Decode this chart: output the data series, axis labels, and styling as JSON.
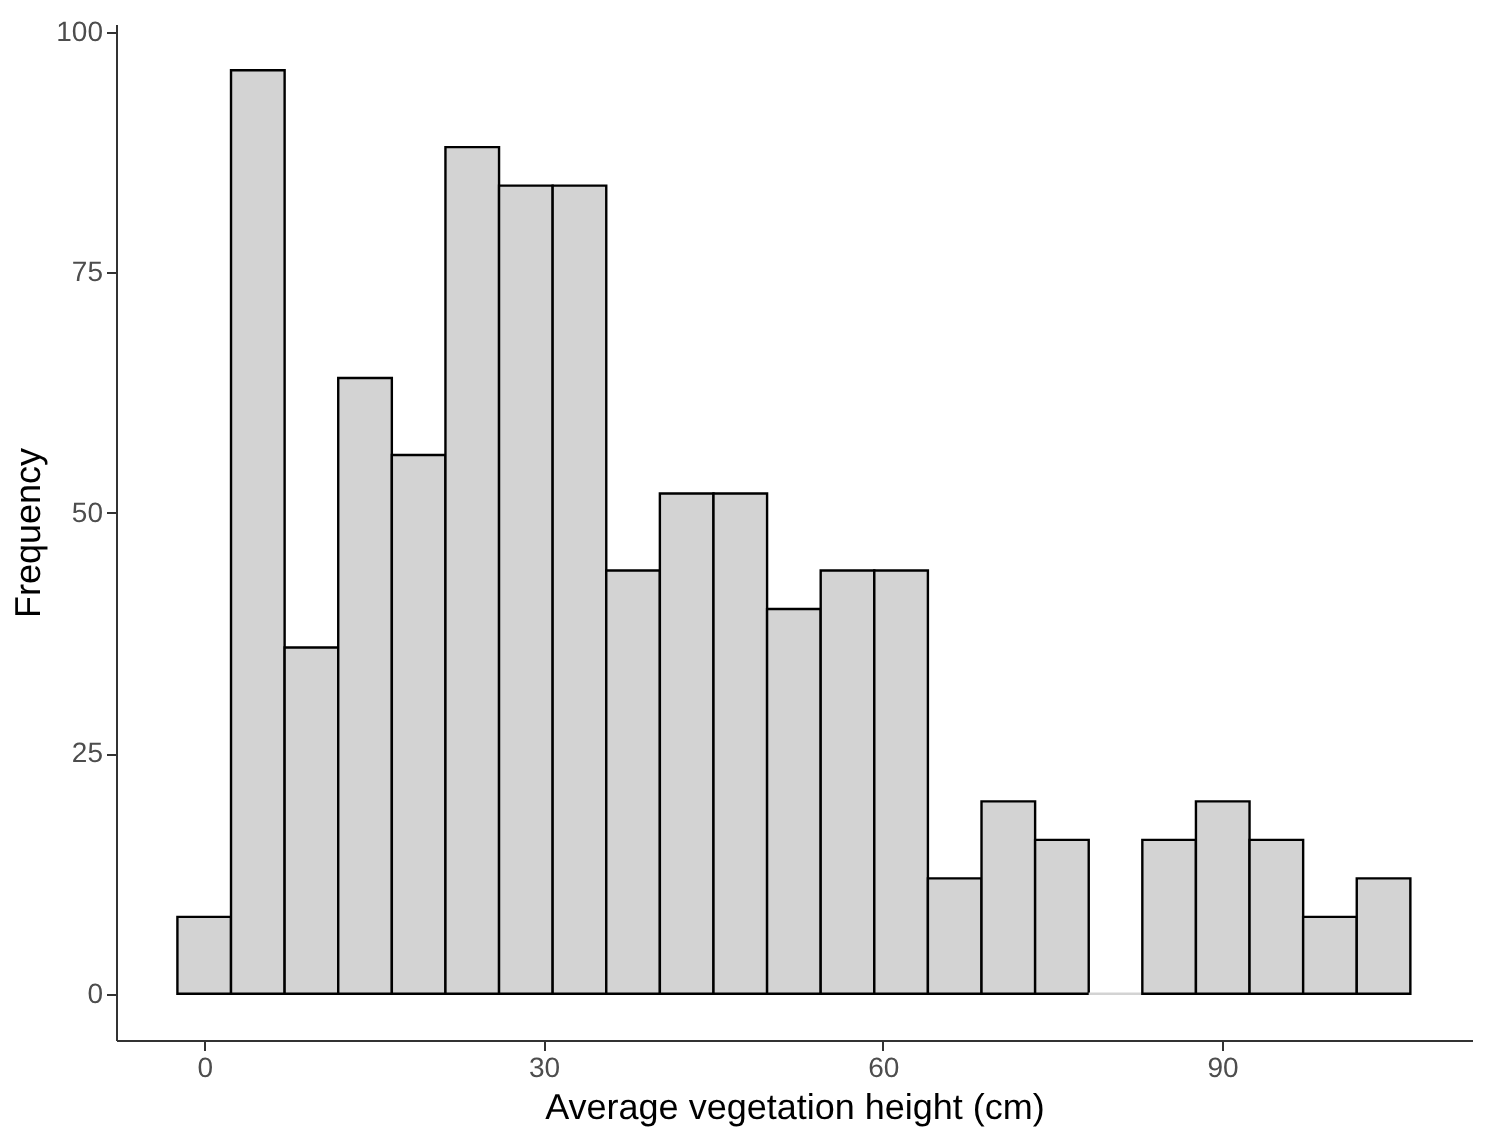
{
  "chart_data": {
    "type": "histogram",
    "xlabel": "Average vegetation height (cm)",
    "ylabel": "Frequency",
    "bins": [
      -2.37,
      2.37,
      7.11,
      11.85,
      16.59,
      21.33,
      26.07,
      30.81,
      35.55,
      40.29,
      45.03,
      49.77,
      54.51,
      59.25,
      63.99,
      68.73,
      73.47,
      78.21,
      82.95,
      87.69,
      92.43,
      97.17,
      101.91,
      106.65
    ],
    "values": [
      8,
      96,
      36,
      64,
      56,
      88,
      84,
      84,
      44,
      52,
      52,
      40,
      44,
      44,
      12,
      20,
      16,
      0,
      16,
      20,
      16,
      8,
      12
    ],
    "color": "#d3d3d3",
    "xlim": [
      -7.8,
      112.1
    ],
    "xticks": [
      0,
      30,
      60,
      90
    ],
    "ylim": [
      -4.8,
      100.8
    ],
    "yticks": [
      0,
      25,
      50,
      75,
      100
    ],
    "grid": false
  }
}
